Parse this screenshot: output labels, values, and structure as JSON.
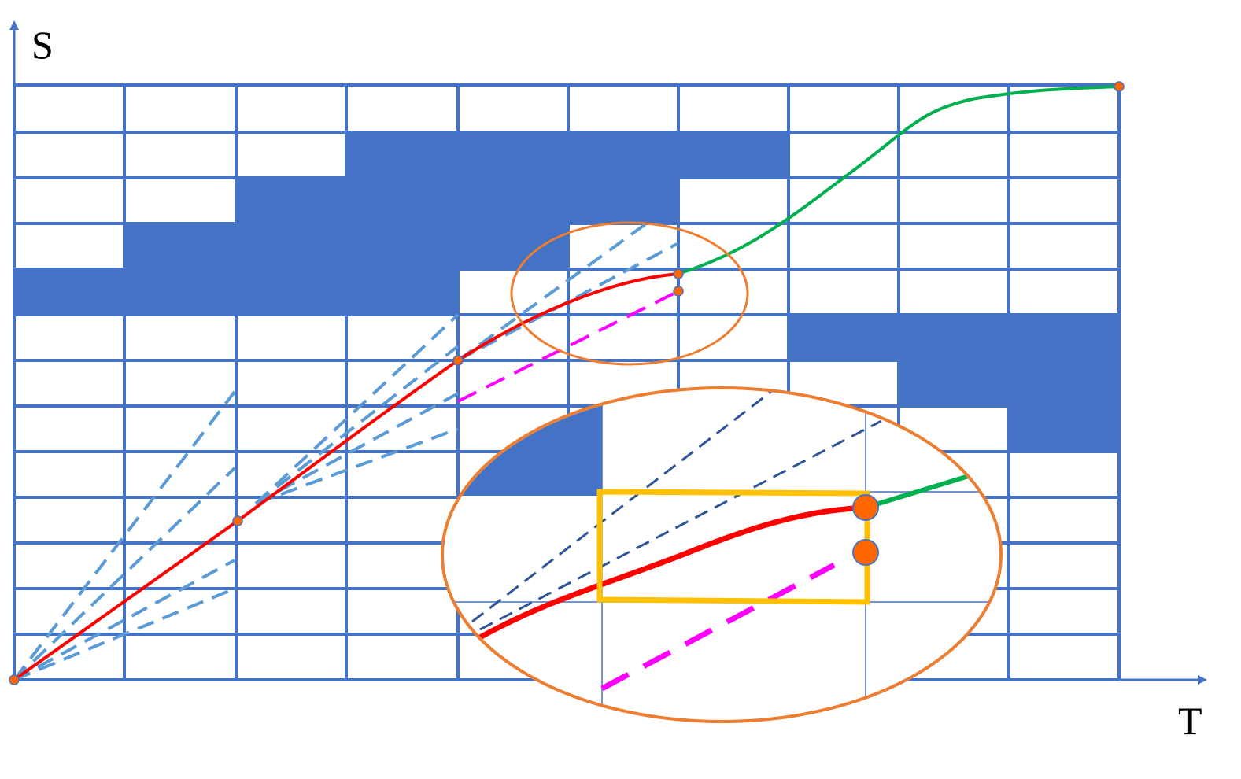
{
  "axes": {
    "y_label": "S",
    "x_label": "T"
  }
}
